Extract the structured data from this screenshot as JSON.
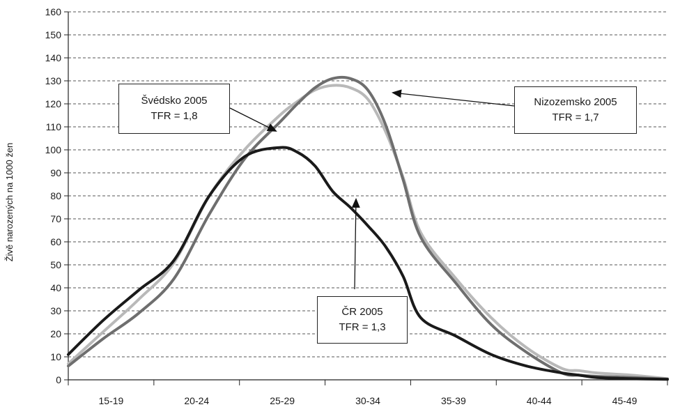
{
  "chart_data": {
    "type": "line",
    "ylabel": "Živě narozených na 1000 žen",
    "ylim": [
      0,
      160
    ],
    "ytick_step": 10,
    "grid": "horizontal dashed",
    "categories": [
      "15-19",
      "20-24",
      "25-29",
      "30-34",
      "35-39",
      "40-44",
      "45-49"
    ],
    "x": [
      15,
      17,
      19,
      21,
      23,
      25,
      27,
      28,
      29,
      30,
      31,
      32,
      33,
      34,
      35,
      37,
      39,
      41,
      43,
      44,
      45,
      47,
      49
    ],
    "series": [
      {
        "name": "Švédsko 2005",
        "color": "#b9b9b9",
        "values": [
          7,
          21,
          35,
          51,
          80,
          100,
          115,
          121,
          126,
          128,
          127,
          122,
          108,
          88,
          64,
          44,
          27,
          14,
          5,
          4,
          3,
          2,
          0.5
        ]
      },
      {
        "name": "Nizozemsko 2005",
        "color": "#6e6e6e",
        "values": [
          6,
          18,
          29,
          44,
          72,
          96,
          112,
          120,
          127,
          131,
          131,
          126,
          111,
          87,
          62,
          42,
          24,
          12,
          3,
          2,
          1.5,
          1,
          0.3
        ]
      },
      {
        "name": "ČR 2005",
        "color": "#1a1a1a",
        "values": [
          11,
          26,
          39,
          52,
          80,
          97,
          101,
          99,
          93,
          82,
          75,
          67,
          58,
          45,
          27,
          19,
          11,
          6,
          3,
          2,
          1,
          0.5,
          0.2
        ]
      }
    ],
    "annotations": [
      {
        "series": "Švédsko 2005",
        "line1": "Švédsko 2005",
        "line2": "TFR = 1,8"
      },
      {
        "series": "Nizozemsko 2005",
        "line1": "Nizozemsko 2005",
        "line2": "TFR = 1,7"
      },
      {
        "series": "ČR 2005",
        "line1": "ČR 2005",
        "line2": "TFR = 1,3"
      }
    ]
  }
}
